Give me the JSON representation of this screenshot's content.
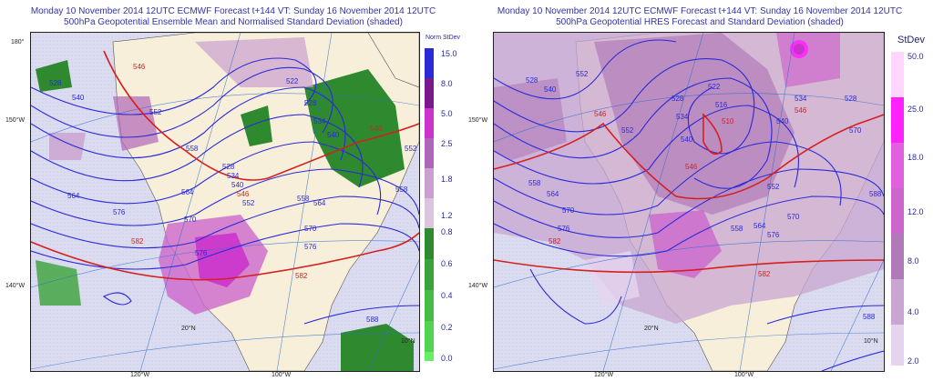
{
  "left_panel": {
    "title_line1": "Monday 10 November 2014 12UTC ECMWF Forecast t+144  VT: Sunday 16 November 2014 12UTC",
    "title_line2": "500hPa Geopotential Ensemble Mean and Normalised Standard Deviation (shaded)",
    "legend_title": "Norm StDev",
    "legend_upper": [
      "15.0",
      "8.0",
      "5.0",
      "2.5",
      "1.8",
      "1.2"
    ],
    "legend_lower": [
      "0.8",
      "0.6",
      "0.4",
      "0.2",
      "0.0"
    ],
    "legend_upper_colors": [
      "#2a2ad9",
      "#7a1a8a",
      "#cc33cc",
      "#b066b8",
      "#c9a0cf",
      "#dcc4e0"
    ],
    "legend_lower_colors": [
      "#2f8a2f",
      "#3aa33a",
      "#46bb46",
      "#52d352",
      "#66ee66"
    ],
    "contour_labels": [
      "528",
      "540",
      "546",
      "552",
      "522",
      "528",
      "534",
      "540",
      "546",
      "528",
      "534",
      "540",
      "546",
      "552",
      "558",
      "564",
      "570",
      "576",
      "582",
      "558",
      "564",
      "570",
      "576",
      "582",
      "588",
      "576",
      "564",
      "558",
      "552"
    ],
    "edge_labels": {
      "lat_top": "180°",
      "lat_150": "150°W",
      "lat_140": "140°W",
      "lon_120": "120°W",
      "lon_100": "100°W",
      "lat_20": "20°N",
      "lat_10": "10°N"
    }
  },
  "right_panel": {
    "title_line1": "Monday 10 November 2014 12UTC ECMWF Forecast t+144  VT: Sunday 16 November 2014 12UTC",
    "title_line2": "500hPa Geopotential HRES Forecast and Standard Deviation (shaded)",
    "legend_title": "StDev",
    "legend_values": [
      "50.0",
      "25.0",
      "18.0",
      "12.0",
      "8.0",
      "4.0",
      "2.0"
    ],
    "legend_colors": [
      "#ffd6ff",
      "#ff22ff",
      "#e060e0",
      "#cc66cc",
      "#b07ab8",
      "#c9a5d2",
      "#e6d4ee"
    ],
    "contour_labels": [
      "528",
      "540",
      "552",
      "546",
      "522",
      "516",
      "510",
      "528",
      "534",
      "540",
      "546",
      "552",
      "558",
      "564",
      "570",
      "576",
      "582",
      "588",
      "552",
      "546",
      "540",
      "534",
      "528",
      "570",
      "564",
      "558",
      "576",
      "582",
      "588",
      "570"
    ],
    "edge_labels": {
      "lat_150": "150°W",
      "lat_140": "140°W",
      "lon_120": "120°W",
      "lon_100": "100°W",
      "lat_20": "20°N",
      "lat_10": "10°N"
    }
  },
  "colors": {
    "contour_blue": "#2a2ad9",
    "contour_red": "#d42020",
    "land": "#f7efd9",
    "ocean_shade": "#dcdcf0"
  }
}
